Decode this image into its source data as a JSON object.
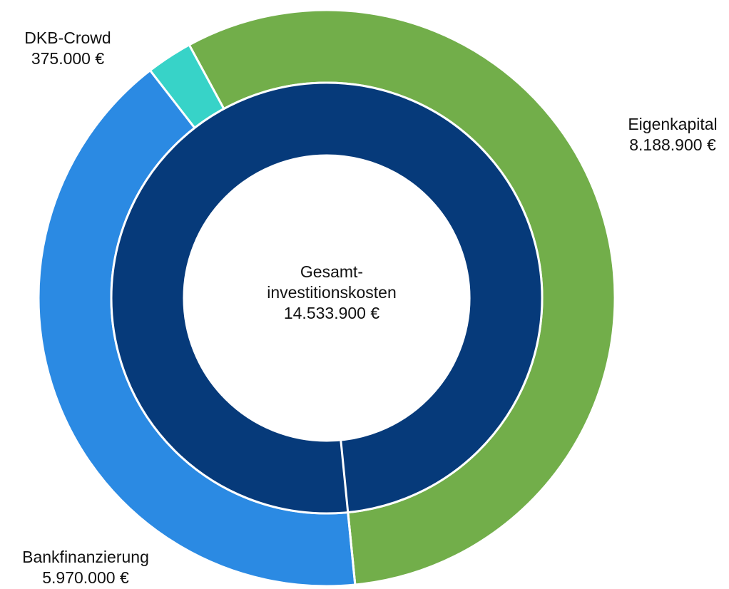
{
  "chart_data": {
    "type": "pie",
    "center": {
      "line1": "Gesamt-",
      "line2": "investitionskosten",
      "value": "14.533.900 €"
    },
    "total": 14533900,
    "inner_ring": {
      "values": [
        14533900
      ],
      "colors": [
        "#063a7a"
      ]
    },
    "outer_ring": {
      "slices": [
        {
          "label": "Eigenkapital",
          "value": 8188900,
          "value_label": "8.188.900 €",
          "color": "#72ae4a"
        },
        {
          "label": "Bankfinanzierung",
          "value": 5970000,
          "value_label": "5.970.000 €",
          "color": "#2b8ae3"
        },
        {
          "label": "DKB-Crowd",
          "value": 375000,
          "value_label": "375.000 €",
          "color": "#37d3c8"
        }
      ]
    }
  }
}
